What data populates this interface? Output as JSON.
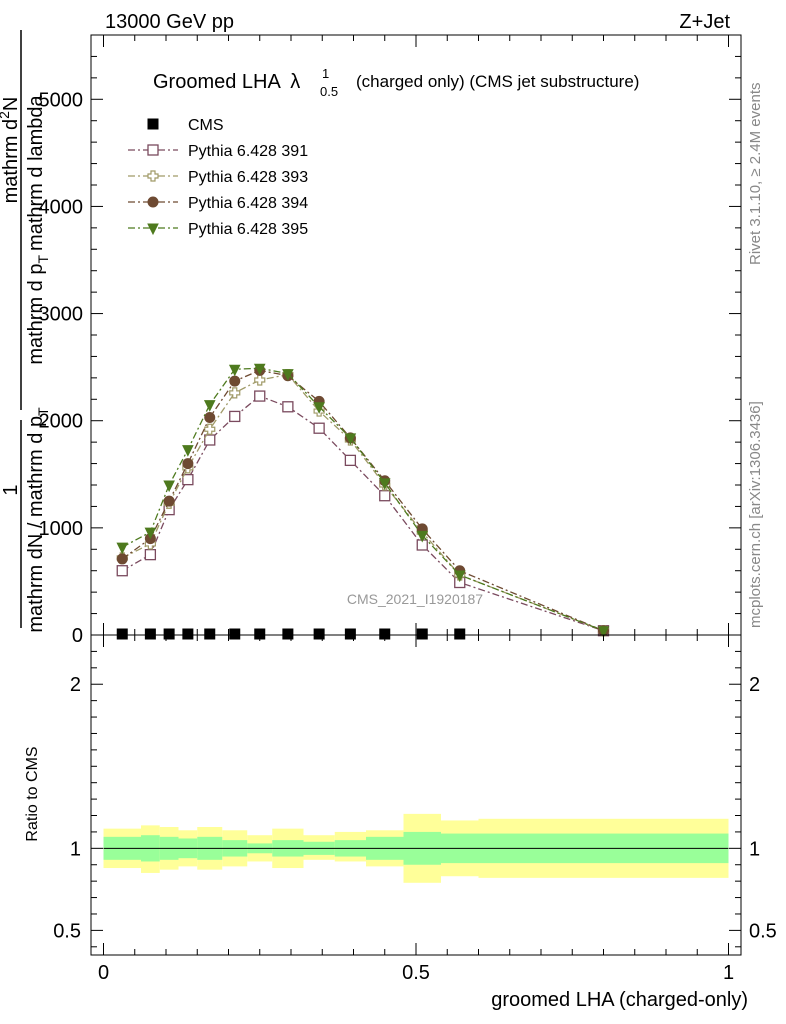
{
  "header": {
    "left": "13000 GeV pp",
    "right": "Z+Jet"
  },
  "side_labels": {
    "rivet": "Rivet 3.1.10, ≥ 2.4M events",
    "mcplots": "mcplots.cern.ch [arXiv:1306.3436]"
  },
  "watermark": "CMS_2021_I1920187",
  "chart_data": [
    {
      "type": "line",
      "title_main": "Groomed LHA",
      "title_symbol": "λ",
      "title_sup": "1",
      "title_sub": "0.5",
      "title_rest": "(charged only) (CMS jet substructure)",
      "xlabel": "groomed LHA (charged-only)",
      "ylabel": {
        "frac1_num": "1",
        "frac1_den": "mathrm dN / mathrm d p",
        "frac1_den_sub": "T",
        "frac2_num": "mathrm d",
        "frac2_num_sup": "2",
        "frac2_num_tail": "N",
        "frac2_den": "mathrm d p",
        "frac2_den_sub": "T",
        "frac2_den_tail": "mathrm d lambda"
      },
      "xlim": [
        -0.02,
        1.02
      ],
      "ylim": [
        0,
        5600
      ],
      "y_ticks": [
        0,
        1000,
        2000,
        3000,
        4000,
        5000
      ],
      "y_tick_labels": [
        "0",
        "1000",
        "2000",
        "3000",
        "4000",
        "5000"
      ],
      "x": [
        0.03,
        0.075,
        0.105,
        0.135,
        0.17,
        0.21,
        0.25,
        0.295,
        0.345,
        0.395,
        0.45,
        0.51,
        0.57,
        0.8
      ],
      "series": [
        {
          "name": "CMS",
          "color": "#000000",
          "marker": "filled-square",
          "values": [
            0,
            0,
            0,
            0,
            0,
            0,
            0,
            0,
            0,
            0,
            0,
            0,
            0,
            0
          ]
        },
        {
          "name": "Pythia 6.428 391",
          "color": "#7a4a5e",
          "marker": "open-square",
          "values": [
            600,
            750,
            1170,
            1450,
            1820,
            2040,
            2230,
            2130,
            1930,
            1630,
            1300,
            840,
            490,
            40
          ]
        },
        {
          "name": "Pythia 6.428 393",
          "color": "#a09a68",
          "marker": "open-cross",
          "values": [
            720,
            850,
            1230,
            1560,
            1920,
            2260,
            2380,
            2430,
            2090,
            1820,
            1400,
            960,
            560,
            40
          ]
        },
        {
          "name": "Pythia 6.428 394",
          "color": "#6e4a32",
          "marker": "filled-circle",
          "values": [
            710,
            900,
            1250,
            1600,
            2030,
            2370,
            2470,
            2420,
            2180,
            1840,
            1440,
            990,
            600,
            40
          ]
        },
        {
          "name": "Pythia 6.428 395",
          "color": "#4e7a1e",
          "marker": "filled-triangle-down",
          "values": [
            820,
            960,
            1400,
            1730,
            2150,
            2480,
            2490,
            2440,
            2130,
            1840,
            1420,
            930,
            560,
            40
          ]
        }
      ]
    },
    {
      "type": "area",
      "ylabel": "Ratio to CMS",
      "xlim": [
        -0.02,
        1.02
      ],
      "ylim": [
        0.35,
        2.3
      ],
      "y_ticks": [
        0.5,
        1,
        2
      ],
      "y_tick_labels": [
        "0.5",
        "1",
        "2"
      ],
      "x_ticks": [
        0,
        0.5,
        1
      ],
      "x_tick_labels": [
        "0",
        "0.5",
        "1"
      ],
      "reference_line": 1,
      "bin_edges": [
        0,
        0.06,
        0.09,
        0.12,
        0.15,
        0.19,
        0.23,
        0.27,
        0.32,
        0.37,
        0.42,
        0.48,
        0.54,
        0.6,
        1.0
      ],
      "band_inner": {
        "color": "#99ff99",
        "low": [
          0.93,
          0.92,
          0.93,
          0.94,
          0.93,
          0.95,
          0.97,
          0.95,
          0.96,
          0.95,
          0.93,
          0.9,
          0.91,
          0.91
        ],
        "high": [
          1.07,
          1.08,
          1.07,
          1.06,
          1.07,
          1.05,
          1.03,
          1.05,
          1.04,
          1.05,
          1.07,
          1.1,
          1.09,
          1.09
        ]
      },
      "band_outer": {
        "color": "#ffff99",
        "low": [
          0.88,
          0.85,
          0.87,
          0.89,
          0.87,
          0.89,
          0.92,
          0.88,
          0.93,
          0.92,
          0.89,
          0.79,
          0.83,
          0.82
        ],
        "high": [
          1.12,
          1.14,
          1.13,
          1.11,
          1.13,
          1.11,
          1.08,
          1.12,
          1.08,
          1.1,
          1.11,
          1.21,
          1.17,
          1.18
        ]
      }
    }
  ]
}
